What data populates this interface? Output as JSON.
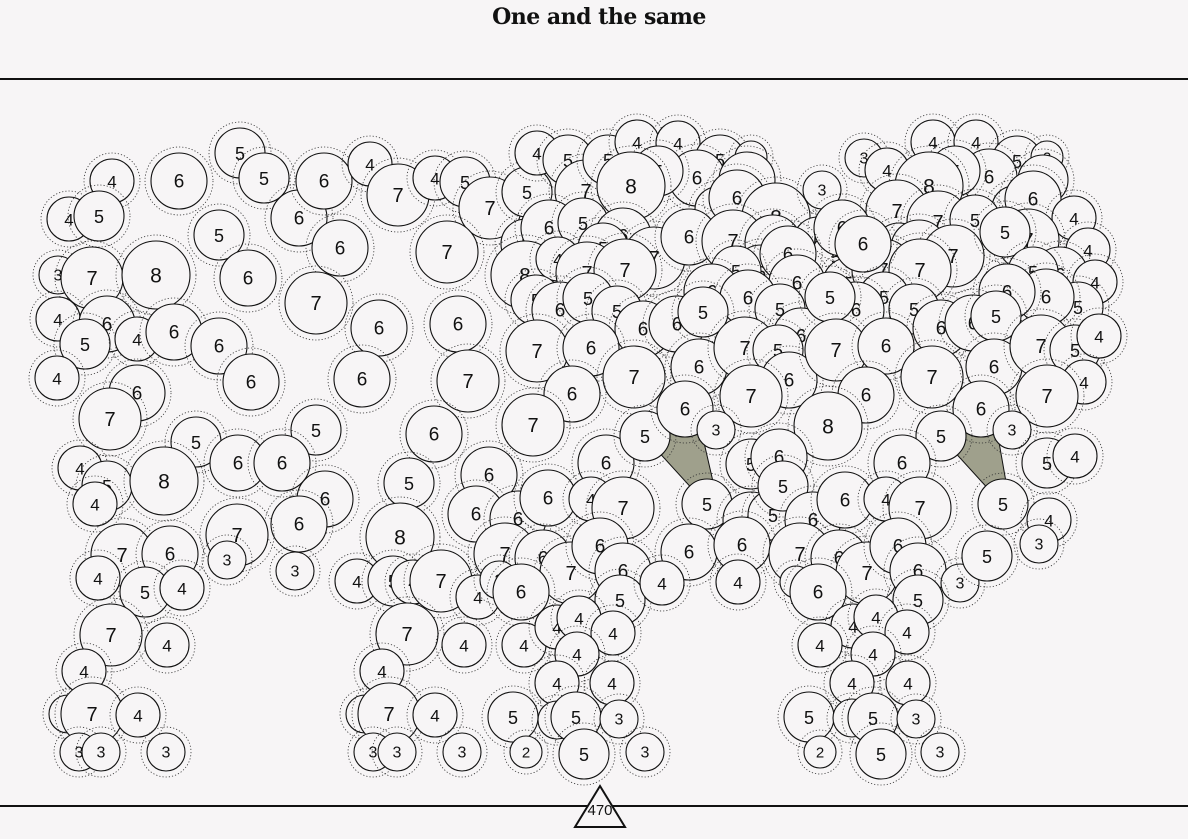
{
  "title": "One and the same",
  "counter": {
    "value": "470",
    "icon": "triangle-icon"
  },
  "colors": {
    "background": "#f7f5f6",
    "ink": "#111111",
    "highlight": "#9fa08c"
  },
  "triangles": [
    {
      "name": "triangle-left",
      "points": [
        [
          644,
          436
        ],
        [
          700,
          425
        ],
        [
          714,
          486
        ],
        [
          706,
          504
        ]
      ]
    },
    {
      "name": "triangle-right",
      "points": [
        [
          940,
          436
        ],
        [
          996,
          425
        ],
        [
          1006,
          482
        ],
        [
          1002,
          504
        ]
      ]
    }
  ],
  "bubbles": [
    [
      240,
      153,
      5
    ],
    [
      264,
      178,
      5
    ],
    [
      112,
      181,
      4
    ],
    [
      179,
      181,
      6
    ],
    [
      69,
      219,
      4
    ],
    [
      99,
      216,
      5
    ],
    [
      219,
      235,
      5
    ],
    [
      299,
      218,
      6
    ],
    [
      324,
      181,
      6
    ],
    [
      370,
      164,
      4
    ],
    [
      398,
      195,
      7
    ],
    [
      435,
      178,
      4
    ],
    [
      465,
      182,
      5
    ],
    [
      490,
      208,
      7
    ],
    [
      527,
      192,
      5
    ],
    [
      537,
      153,
      4
    ],
    [
      568,
      160,
      5
    ],
    [
      586,
      191,
      7
    ],
    [
      608,
      160,
      5
    ],
    [
      637,
      142,
      4
    ],
    [
      678,
      143,
      4
    ],
    [
      720,
      160,
      5
    ],
    [
      751,
      157,
      2
    ],
    [
      697,
      178,
      6
    ],
    [
      658,
      171,
      5
    ],
    [
      631,
      186,
      8
    ],
    [
      717,
      209,
      4
    ],
    [
      747,
      180,
      6
    ],
    [
      737,
      198,
      6
    ],
    [
      776,
      217,
      8
    ],
    [
      822,
      190,
      3
    ],
    [
      864,
      158,
      3
    ],
    [
      887,
      170,
      4
    ],
    [
      933,
      142,
      4
    ],
    [
      976,
      142,
      4
    ],
    [
      1017,
      161,
      5
    ],
    [
      1047,
      157,
      2
    ],
    [
      989,
      177,
      6
    ],
    [
      955,
      171,
      5
    ],
    [
      929,
      186,
      8
    ],
    [
      1014,
      208,
      4
    ],
    [
      1043,
      180,
      5
    ],
    [
      1033,
      199,
      6
    ],
    [
      1074,
      218,
      4
    ],
    [
      1028,
      240,
      7
    ],
    [
      897,
      211,
      7
    ],
    [
      938,
      222,
      7
    ],
    [
      975,
      220,
      5
    ],
    [
      58,
      275,
      3
    ],
    [
      92,
      278,
      7
    ],
    [
      156,
      275,
      8
    ],
    [
      248,
      278,
      6
    ],
    [
      340,
      248,
      6
    ],
    [
      447,
      252,
      7
    ],
    [
      316,
      303,
      7
    ],
    [
      526,
      244,
      5
    ],
    [
      549,
      228,
      6
    ],
    [
      583,
      223,
      5
    ],
    [
      623,
      236,
      6
    ],
    [
      654,
      258,
      7
    ],
    [
      689,
      237,
      6
    ],
    [
      733,
      241,
      7
    ],
    [
      773,
      243,
      6
    ],
    [
      818,
      242,
      5
    ],
    [
      836,
      257,
      5
    ],
    [
      842,
      228,
      6
    ],
    [
      899,
      248,
      5
    ],
    [
      919,
      248,
      6
    ],
    [
      953,
      256,
      7
    ],
    [
      1005,
      232,
      5
    ],
    [
      1088,
      250,
      4
    ],
    [
      1060,
      275,
      6
    ],
    [
      1033,
      272,
      5
    ],
    [
      1095,
      282,
      4
    ],
    [
      1078,
      307,
      5
    ],
    [
      1046,
      297,
      6
    ],
    [
      1007,
      292,
      6
    ],
    [
      525,
      275,
      8
    ],
    [
      558,
      259,
      4
    ],
    [
      603,
      248,
      5
    ],
    [
      587,
      273,
      7
    ],
    [
      625,
      270,
      7
    ],
    [
      761,
      273,
      6
    ],
    [
      788,
      254,
      6
    ],
    [
      797,
      283,
      6
    ],
    [
      736,
      271,
      5
    ],
    [
      848,
      283,
      5
    ],
    [
      883,
      270,
      7
    ],
    [
      920,
      270,
      7
    ],
    [
      863,
      244,
      6
    ],
    [
      58,
      319,
      4
    ],
    [
      107,
      324,
      6
    ],
    [
      85,
      344,
      5
    ],
    [
      137,
      339,
      4
    ],
    [
      174,
      332,
      6
    ],
    [
      219,
      346,
      6
    ],
    [
      251,
      382,
      6
    ],
    [
      379,
      328,
      6
    ],
    [
      458,
      324,
      6
    ],
    [
      362,
      379,
      6
    ],
    [
      536,
      300,
      5
    ],
    [
      560,
      310,
      6
    ],
    [
      588,
      298,
      5
    ],
    [
      617,
      311,
      5
    ],
    [
      643,
      329,
      6
    ],
    [
      677,
      324,
      6
    ],
    [
      712,
      292,
      6
    ],
    [
      748,
      298,
      6
    ],
    [
      780,
      309,
      5
    ],
    [
      801,
      336,
      6
    ],
    [
      884,
      297,
      5
    ],
    [
      914,
      309,
      5
    ],
    [
      941,
      328,
      6
    ],
    [
      973,
      323,
      6
    ],
    [
      996,
      316,
      5
    ],
    [
      856,
      310,
      6
    ],
    [
      830,
      297,
      5
    ],
    [
      703,
      312,
      5
    ],
    [
      57,
      378,
      4
    ],
    [
      137,
      393,
      6
    ],
    [
      110,
      419,
      7
    ],
    [
      537,
      351,
      7
    ],
    [
      591,
      348,
      6
    ],
    [
      634,
      377,
      7
    ],
    [
      699,
      367,
      6
    ],
    [
      745,
      348,
      7
    ],
    [
      778,
      350,
      5
    ],
    [
      789,
      380,
      6
    ],
    [
      836,
      350,
      7
    ],
    [
      886,
      346,
      6
    ],
    [
      932,
      377,
      7
    ],
    [
      994,
      367,
      6
    ],
    [
      1041,
      346,
      7
    ],
    [
      1075,
      350,
      5
    ],
    [
      1099,
      336,
      4
    ],
    [
      1084,
      382,
      4
    ],
    [
      1047,
      396,
      7
    ],
    [
      468,
      381,
      7
    ],
    [
      572,
      394,
      6
    ],
    [
      751,
      396,
      7
    ],
    [
      866,
      395,
      6
    ],
    [
      981,
      409,
      6
    ],
    [
      196,
      442,
      5
    ],
    [
      316,
      430,
      5
    ],
    [
      80,
      468,
      4
    ],
    [
      107,
      486,
      5
    ],
    [
      95,
      504,
      4
    ],
    [
      164,
      481,
      8
    ],
    [
      238,
      463,
      6
    ],
    [
      282,
      463,
      6
    ],
    [
      434,
      434,
      6
    ],
    [
      533,
      425,
      7
    ],
    [
      606,
      463,
      6
    ],
    [
      645,
      436,
      5
    ],
    [
      685,
      409,
      6
    ],
    [
      716,
      430,
      3
    ],
    [
      828,
      426,
      8
    ],
    [
      941,
      436,
      5
    ],
    [
      1012,
      430,
      3
    ],
    [
      902,
      463,
      6
    ],
    [
      1047,
      463,
      5
    ],
    [
      1075,
      456,
      4
    ],
    [
      751,
      464,
      5
    ],
    [
      779,
      457,
      6
    ],
    [
      409,
      483,
      5
    ],
    [
      489,
      475,
      6
    ],
    [
      476,
      514,
      6
    ],
    [
      518,
      519,
      6
    ],
    [
      548,
      498,
      6
    ],
    [
      591,
      499,
      4
    ],
    [
      623,
      508,
      7
    ],
    [
      707,
      504,
      5
    ],
    [
      751,
      520,
      6
    ],
    [
      773,
      515,
      5
    ],
    [
      783,
      486,
      5
    ],
    [
      813,
      520,
      6
    ],
    [
      845,
      500,
      6
    ],
    [
      886,
      499,
      4
    ],
    [
      920,
      508,
      7
    ],
    [
      1003,
      504,
      5
    ],
    [
      1049,
      520,
      4
    ],
    [
      325,
      499,
      6
    ],
    [
      299,
      524,
      6
    ],
    [
      122,
      555,
      7
    ],
    [
      170,
      554,
      6
    ],
    [
      237,
      535,
      7
    ],
    [
      227,
      560,
      3
    ],
    [
      295,
      571,
      3
    ],
    [
      400,
      537,
      8
    ],
    [
      505,
      554,
      7
    ],
    [
      543,
      558,
      6
    ],
    [
      571,
      573,
      7
    ],
    [
      600,
      546,
      6
    ],
    [
      623,
      571,
      6
    ],
    [
      689,
      552,
      6
    ],
    [
      742,
      545,
      6
    ],
    [
      800,
      554,
      7
    ],
    [
      839,
      558,
      6
    ],
    [
      867,
      573,
      7
    ],
    [
      898,
      546,
      6
    ],
    [
      918,
      571,
      6
    ],
    [
      960,
      583,
      3
    ],
    [
      987,
      556,
      5
    ],
    [
      1039,
      544,
      3
    ],
    [
      98,
      578,
      4
    ],
    [
      145,
      592,
      5
    ],
    [
      182,
      588,
      4
    ],
    [
      357,
      581,
      4
    ],
    [
      393,
      581,
      5
    ],
    [
      413,
      582,
      4
    ],
    [
      441,
      581,
      7
    ],
    [
      478,
      597,
      4
    ],
    [
      499,
      580,
      3
    ],
    [
      521,
      592,
      6
    ],
    [
      620,
      600,
      5
    ],
    [
      662,
      583,
      4
    ],
    [
      738,
      582,
      4
    ],
    [
      796,
      582,
      2
    ],
    [
      818,
      592,
      6
    ],
    [
      918,
      600,
      5
    ],
    [
      111,
      635,
      7
    ],
    [
      167,
      645,
      4
    ],
    [
      84,
      671,
      4
    ],
    [
      407,
      634,
      7
    ],
    [
      464,
      645,
      4
    ],
    [
      524,
      645,
      4
    ],
    [
      382,
      671,
      4
    ],
    [
      557,
      627,
      4
    ],
    [
      579,
      618,
      4
    ],
    [
      613,
      633,
      4
    ],
    [
      577,
      654,
      4
    ],
    [
      853,
      626,
      4
    ],
    [
      876,
      617,
      4
    ],
    [
      907,
      632,
      4
    ],
    [
      820,
      645,
      4
    ],
    [
      873,
      654,
      4
    ],
    [
      557,
      683,
      4
    ],
    [
      612,
      683,
      4
    ],
    [
      852,
      683,
      4
    ],
    [
      908,
      683,
      4
    ],
    [
      68,
      714,
      3
    ],
    [
      92,
      714,
      7
    ],
    [
      138,
      715,
      4
    ],
    [
      365,
      714,
      3
    ],
    [
      389,
      714,
      7
    ],
    [
      435,
      715,
      4
    ],
    [
      513,
      717,
      5
    ],
    [
      557,
      720,
      3
    ],
    [
      576,
      717,
      5
    ],
    [
      619,
      719,
      3
    ],
    [
      809,
      717,
      5
    ],
    [
      852,
      718,
      3
    ],
    [
      873,
      718,
      5
    ],
    [
      916,
      719,
      3
    ],
    [
      79,
      752,
      3
    ],
    [
      101,
      752,
      3
    ],
    [
      166,
      752,
      3
    ],
    [
      373,
      752,
      3
    ],
    [
      397,
      752,
      3
    ],
    [
      462,
      752,
      3
    ],
    [
      526,
      752,
      2
    ],
    [
      584,
      754,
      5
    ],
    [
      645,
      752,
      3
    ],
    [
      820,
      752,
      2
    ],
    [
      881,
      754,
      5
    ],
    [
      940,
      752,
      3
    ]
  ]
}
